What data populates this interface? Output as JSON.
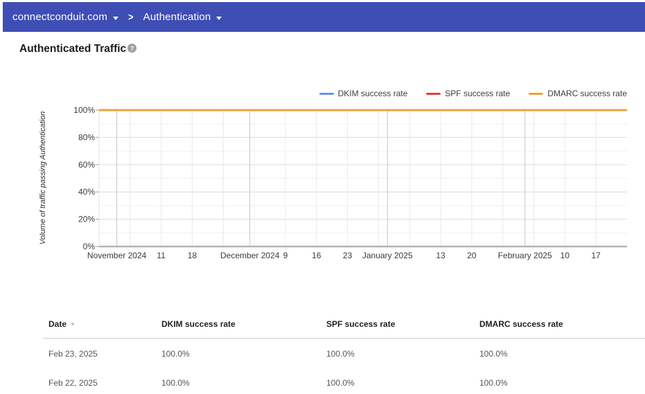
{
  "topbar": {
    "domain": "connectconduit.com",
    "section": "Authentication",
    "separator": ">",
    "bar_color": "#3E4EB5"
  },
  "page": {
    "title": "Authenticated Traffic",
    "help_icon": "?"
  },
  "chart_data": {
    "type": "line",
    "title": "Authenticated Traffic",
    "ylabel": "Volume of traffic passing Authentication",
    "ylim": [
      0,
      100
    ],
    "y_major_ticks": [
      {
        "value": 0,
        "label": "0%"
      },
      {
        "value": 20,
        "label": "20%"
      },
      {
        "value": 40,
        "label": "40%"
      },
      {
        "value": 60,
        "label": "60%"
      },
      {
        "value": 80,
        "label": "80%"
      },
      {
        "value": 100,
        "label": "100%"
      }
    ],
    "y_minor_ticks": [
      10,
      30,
      50,
      70,
      90
    ],
    "grid": true,
    "legend_position": "top-right",
    "xlim_days": [
      -4,
      115
    ],
    "x_month_ticks": [
      {
        "day": 0,
        "label": "November 2024"
      },
      {
        "day": 30,
        "label": "December 2024"
      },
      {
        "day": 61,
        "label": "January 2025"
      },
      {
        "day": 92,
        "label": "February 2025"
      }
    ],
    "x_week_ticks": [
      {
        "day": 3,
        "label": ""
      },
      {
        "day": 10,
        "label": "11"
      },
      {
        "day": 17,
        "label": "18"
      },
      {
        "day": 24,
        "label": ""
      },
      {
        "day": 31,
        "label": ""
      },
      {
        "day": 38,
        "label": "9"
      },
      {
        "day": 45,
        "label": "16"
      },
      {
        "day": 52,
        "label": "23"
      },
      {
        "day": 59,
        "label": ""
      },
      {
        "day": 66,
        "label": ""
      },
      {
        "day": 73,
        "label": "13"
      },
      {
        "day": 80,
        "label": "20"
      },
      {
        "day": 87,
        "label": ""
      },
      {
        "day": 94,
        "label": ""
      },
      {
        "day": 101,
        "label": "10"
      },
      {
        "day": 108,
        "label": "17"
      }
    ],
    "series": [
      {
        "name": "DKIM success rate",
        "color": "#6694E3",
        "constant_value": 100
      },
      {
        "name": "SPF success rate",
        "color": "#DB4437",
        "constant_value": 100
      },
      {
        "name": "DMARC success rate",
        "color": "#E9A33C",
        "constant_value": 100
      }
    ]
  },
  "table": {
    "sort_indicator": "▼",
    "columns": [
      {
        "label": "Date"
      },
      {
        "label": "DKIM success rate"
      },
      {
        "label": "SPF success rate"
      },
      {
        "label": "DMARC success rate"
      }
    ],
    "rows": [
      [
        "Feb 23, 2025",
        "100.0%",
        "100.0%",
        "100.0%"
      ],
      [
        "Feb 22, 2025",
        "100.0%",
        "100.0%",
        "100.0%"
      ]
    ]
  }
}
